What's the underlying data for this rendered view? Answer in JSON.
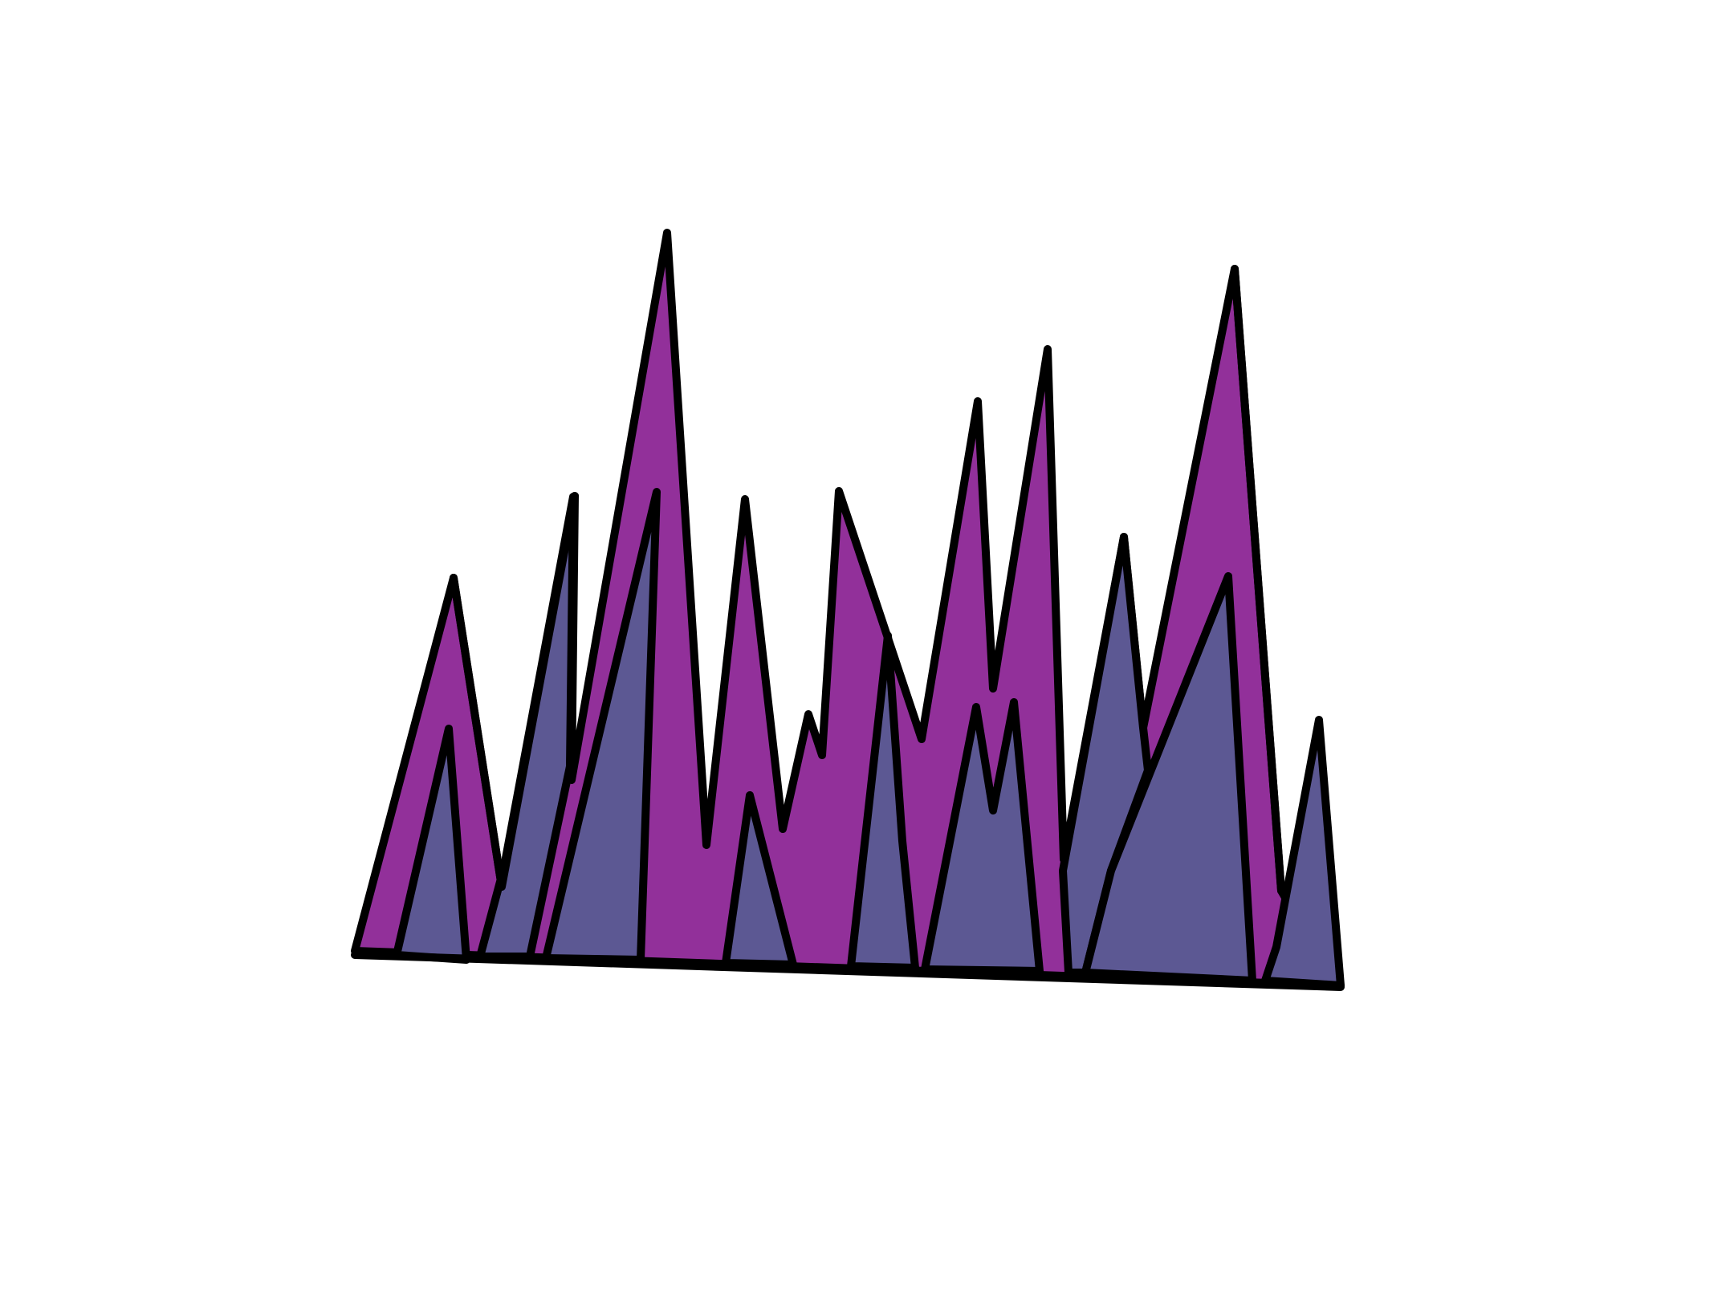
{
  "drawing": {
    "subject": "jagged-spikes-doodle",
    "colors": {
      "back_layer": "#92309a",
      "front_layer": "#5c5893",
      "outline": "#000000",
      "background": "#ffffff"
    }
  }
}
